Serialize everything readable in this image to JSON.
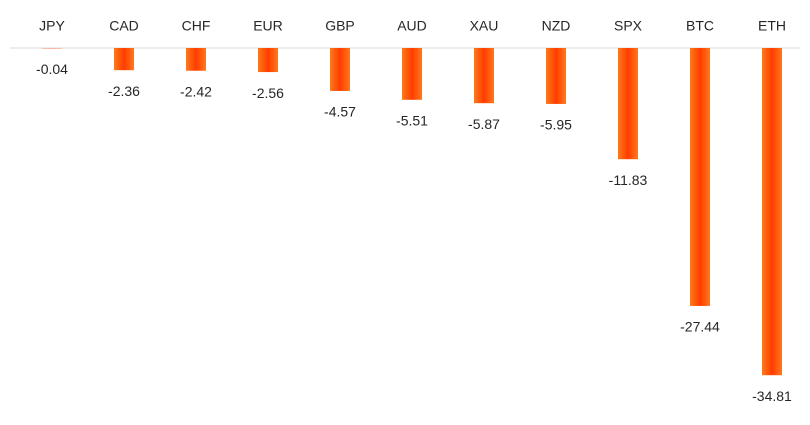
{
  "chart_data": {
    "type": "bar",
    "categories": [
      "JPY",
      "CAD",
      "CHF",
      "EUR",
      "GBP",
      "AUD",
      "XAU",
      "NZD",
      "SPX",
      "BTC",
      "ETH"
    ],
    "values": [
      -0.04,
      -2.36,
      -2.42,
      -2.56,
      -4.57,
      -5.51,
      -5.87,
      -5.95,
      -11.83,
      -27.44,
      -34.81
    ],
    "color": "#ff4500"
  }
}
